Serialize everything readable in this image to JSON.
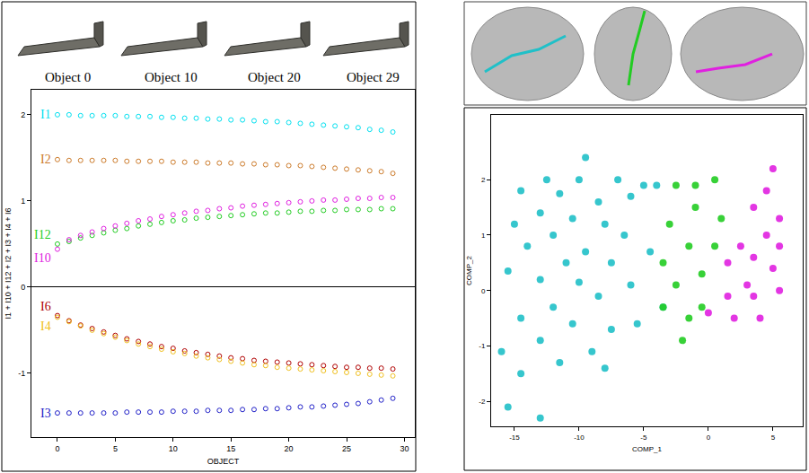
{
  "object_labels": [
    "Object 0",
    "Object 10",
    "Object 20",
    "Object 29"
  ],
  "chart_data": [
    {
      "type": "scatter",
      "marker": "circle-open",
      "xlabel": "OBJECT",
      "ylabel": "I1 + I10 + I12 + I2 + I3 + I4 + I6",
      "xlim": [
        -2.25,
        30.9
      ],
      "ylim": [
        -1.74,
        2.29
      ],
      "xticks": [
        0,
        5,
        10,
        15,
        20,
        25,
        30
      ],
      "yticks": [
        -1,
        0,
        1,
        2
      ],
      "x": [
        0,
        1,
        2,
        3,
        4,
        5,
        6,
        7,
        8,
        9,
        10,
        11,
        12,
        13,
        14,
        15,
        16,
        17,
        18,
        19,
        20,
        21,
        22,
        23,
        24,
        25,
        26,
        27,
        28,
        29
      ],
      "series": [
        {
          "name": "I1",
          "color": "#00e0f0",
          "values": [
            2.0,
            2.0,
            1.99,
            1.99,
            1.99,
            1.99,
            1.98,
            1.98,
            1.98,
            1.97,
            1.97,
            1.96,
            1.96,
            1.95,
            1.95,
            1.94,
            1.94,
            1.93,
            1.92,
            1.92,
            1.91,
            1.9,
            1.89,
            1.88,
            1.87,
            1.86,
            1.85,
            1.83,
            1.82,
            1.8
          ]
        },
        {
          "name": "I2",
          "color": "#cc7a29",
          "values": [
            1.48,
            1.47,
            1.47,
            1.47,
            1.47,
            1.47,
            1.46,
            1.46,
            1.46,
            1.46,
            1.45,
            1.45,
            1.45,
            1.44,
            1.44,
            1.44,
            1.43,
            1.43,
            1.42,
            1.42,
            1.41,
            1.41,
            1.4,
            1.39,
            1.38,
            1.37,
            1.36,
            1.35,
            1.34,
            1.32
          ]
        },
        {
          "name": "I12",
          "color": "#22cc22",
          "values": [
            0.5,
            0.53,
            0.57,
            0.6,
            0.63,
            0.66,
            0.68,
            0.71,
            0.73,
            0.75,
            0.77,
            0.78,
            0.8,
            0.81,
            0.82,
            0.83,
            0.84,
            0.85,
            0.86,
            0.86,
            0.87,
            0.88,
            0.88,
            0.89,
            0.89,
            0.9,
            0.9,
            0.9,
            0.91,
            0.91
          ]
        },
        {
          "name": "I10",
          "color": "#e020e0",
          "values": [
            0.44,
            0.55,
            0.6,
            0.64,
            0.68,
            0.71,
            0.74,
            0.77,
            0.79,
            0.82,
            0.84,
            0.86,
            0.88,
            0.89,
            0.91,
            0.92,
            0.94,
            0.95,
            0.96,
            0.97,
            0.98,
            0.99,
            1.0,
            1.01,
            1.01,
            1.02,
            1.03,
            1.03,
            1.04,
            1.04
          ]
        },
        {
          "name": "I6",
          "color": "#b00000",
          "values": [
            -0.33,
            -0.39,
            -0.44,
            -0.48,
            -0.52,
            -0.56,
            -0.6,
            -0.63,
            -0.66,
            -0.69,
            -0.71,
            -0.74,
            -0.76,
            -0.78,
            -0.8,
            -0.82,
            -0.83,
            -0.85,
            -0.86,
            -0.87,
            -0.88,
            -0.89,
            -0.9,
            -0.91,
            -0.92,
            -0.93,
            -0.93,
            -0.94,
            -0.94,
            -0.95
          ]
        },
        {
          "name": "I4",
          "color": "#f0c020",
          "values": [
            -0.35,
            -0.4,
            -0.45,
            -0.5,
            -0.54,
            -0.58,
            -0.62,
            -0.66,
            -0.69,
            -0.72,
            -0.75,
            -0.77,
            -0.8,
            -0.82,
            -0.84,
            -0.86,
            -0.88,
            -0.9,
            -0.91,
            -0.93,
            -0.94,
            -0.95,
            -0.96,
            -0.97,
            -0.98,
            -0.99,
            -1.0,
            -1.01,
            -1.02,
            -1.03
          ]
        },
        {
          "name": "I3",
          "color": "#2020c8",
          "values": [
            -1.46,
            -1.46,
            -1.46,
            -1.46,
            -1.46,
            -1.46,
            -1.45,
            -1.45,
            -1.45,
            -1.45,
            -1.44,
            -1.44,
            -1.44,
            -1.43,
            -1.43,
            -1.43,
            -1.42,
            -1.42,
            -1.41,
            -1.41,
            -1.4,
            -1.39,
            -1.39,
            -1.38,
            -1.37,
            -1.36,
            -1.35,
            -1.33,
            -1.31,
            -1.29
          ]
        }
      ]
    },
    {
      "type": "scatter",
      "marker": "circle",
      "xlabel": "COMP_1",
      "ylabel": "COMP_2",
      "xlim": [
        -16.8,
        7.3
      ],
      "ylim": [
        -2.45,
        3.17
      ],
      "xticks": [
        -15,
        -10,
        -5,
        0,
        5
      ],
      "yticks": [
        -2,
        -1,
        0,
        1,
        2
      ],
      "series": [
        {
          "color": "#20c0c8",
          "x": [
            -9.5,
            -12.5,
            -10,
            -7,
            -5,
            -14.5,
            -11.5,
            -8.5,
            -6,
            -4,
            -13,
            -10.5,
            -15,
            -8,
            -6.5,
            -12,
            -14,
            -9.5,
            -4.5,
            -11,
            -7.5,
            -15.5,
            -13,
            -10,
            -6,
            -8.5,
            -12,
            -14.5,
            -10.5,
            -7.5,
            -16,
            -13,
            -9,
            -5.5,
            -11.5,
            -14.5,
            -8,
            -15.5,
            -13,
            -3.5
          ],
          "y": [
            2.4,
            2.0,
            2.0,
            2.0,
            1.9,
            1.8,
            1.75,
            1.6,
            1.7,
            1.9,
            1.4,
            1.3,
            1.2,
            1.2,
            1.0,
            1.0,
            0.8,
            0.7,
            0.7,
            0.5,
            0.5,
            0.35,
            0.2,
            0.15,
            0.1,
            -0.1,
            -0.3,
            -0.5,
            -0.6,
            -0.7,
            -1.1,
            -0.9,
            -1.1,
            -0.6,
            -1.3,
            -1.5,
            -1.4,
            -2.1,
            -2.3,
            -0.3
          ]
        },
        {
          "color": "#22cc22",
          "x": [
            -2.5,
            -1,
            0.5,
            -3,
            -1,
            1,
            -3.5,
            -1.5,
            0.5,
            -2.5,
            -0.5,
            -3.5,
            -1.5,
            -2,
            -0.5
          ],
          "y": [
            1.9,
            1.9,
            2.0,
            1.2,
            1.5,
            1.3,
            0.5,
            0.8,
            0.8,
            0.1,
            0.3,
            -0.3,
            -0.5,
            -0.9,
            -0.3
          ]
        },
        {
          "color": "#e020e0",
          "x": [
            5,
            4.5,
            3.5,
            5.5,
            4.5,
            2.5,
            5.5,
            3.5,
            1.5,
            5,
            3,
            5.5,
            1.5,
            3.5,
            0,
            2,
            4
          ],
          "y": [
            2.2,
            1.8,
            1.5,
            1.3,
            1.0,
            0.8,
            0.8,
            0.6,
            0.5,
            0.4,
            0.1,
            0.0,
            -0.1,
            -0.1,
            -0.4,
            -0.5,
            -0.5
          ]
        }
      ]
    }
  ]
}
